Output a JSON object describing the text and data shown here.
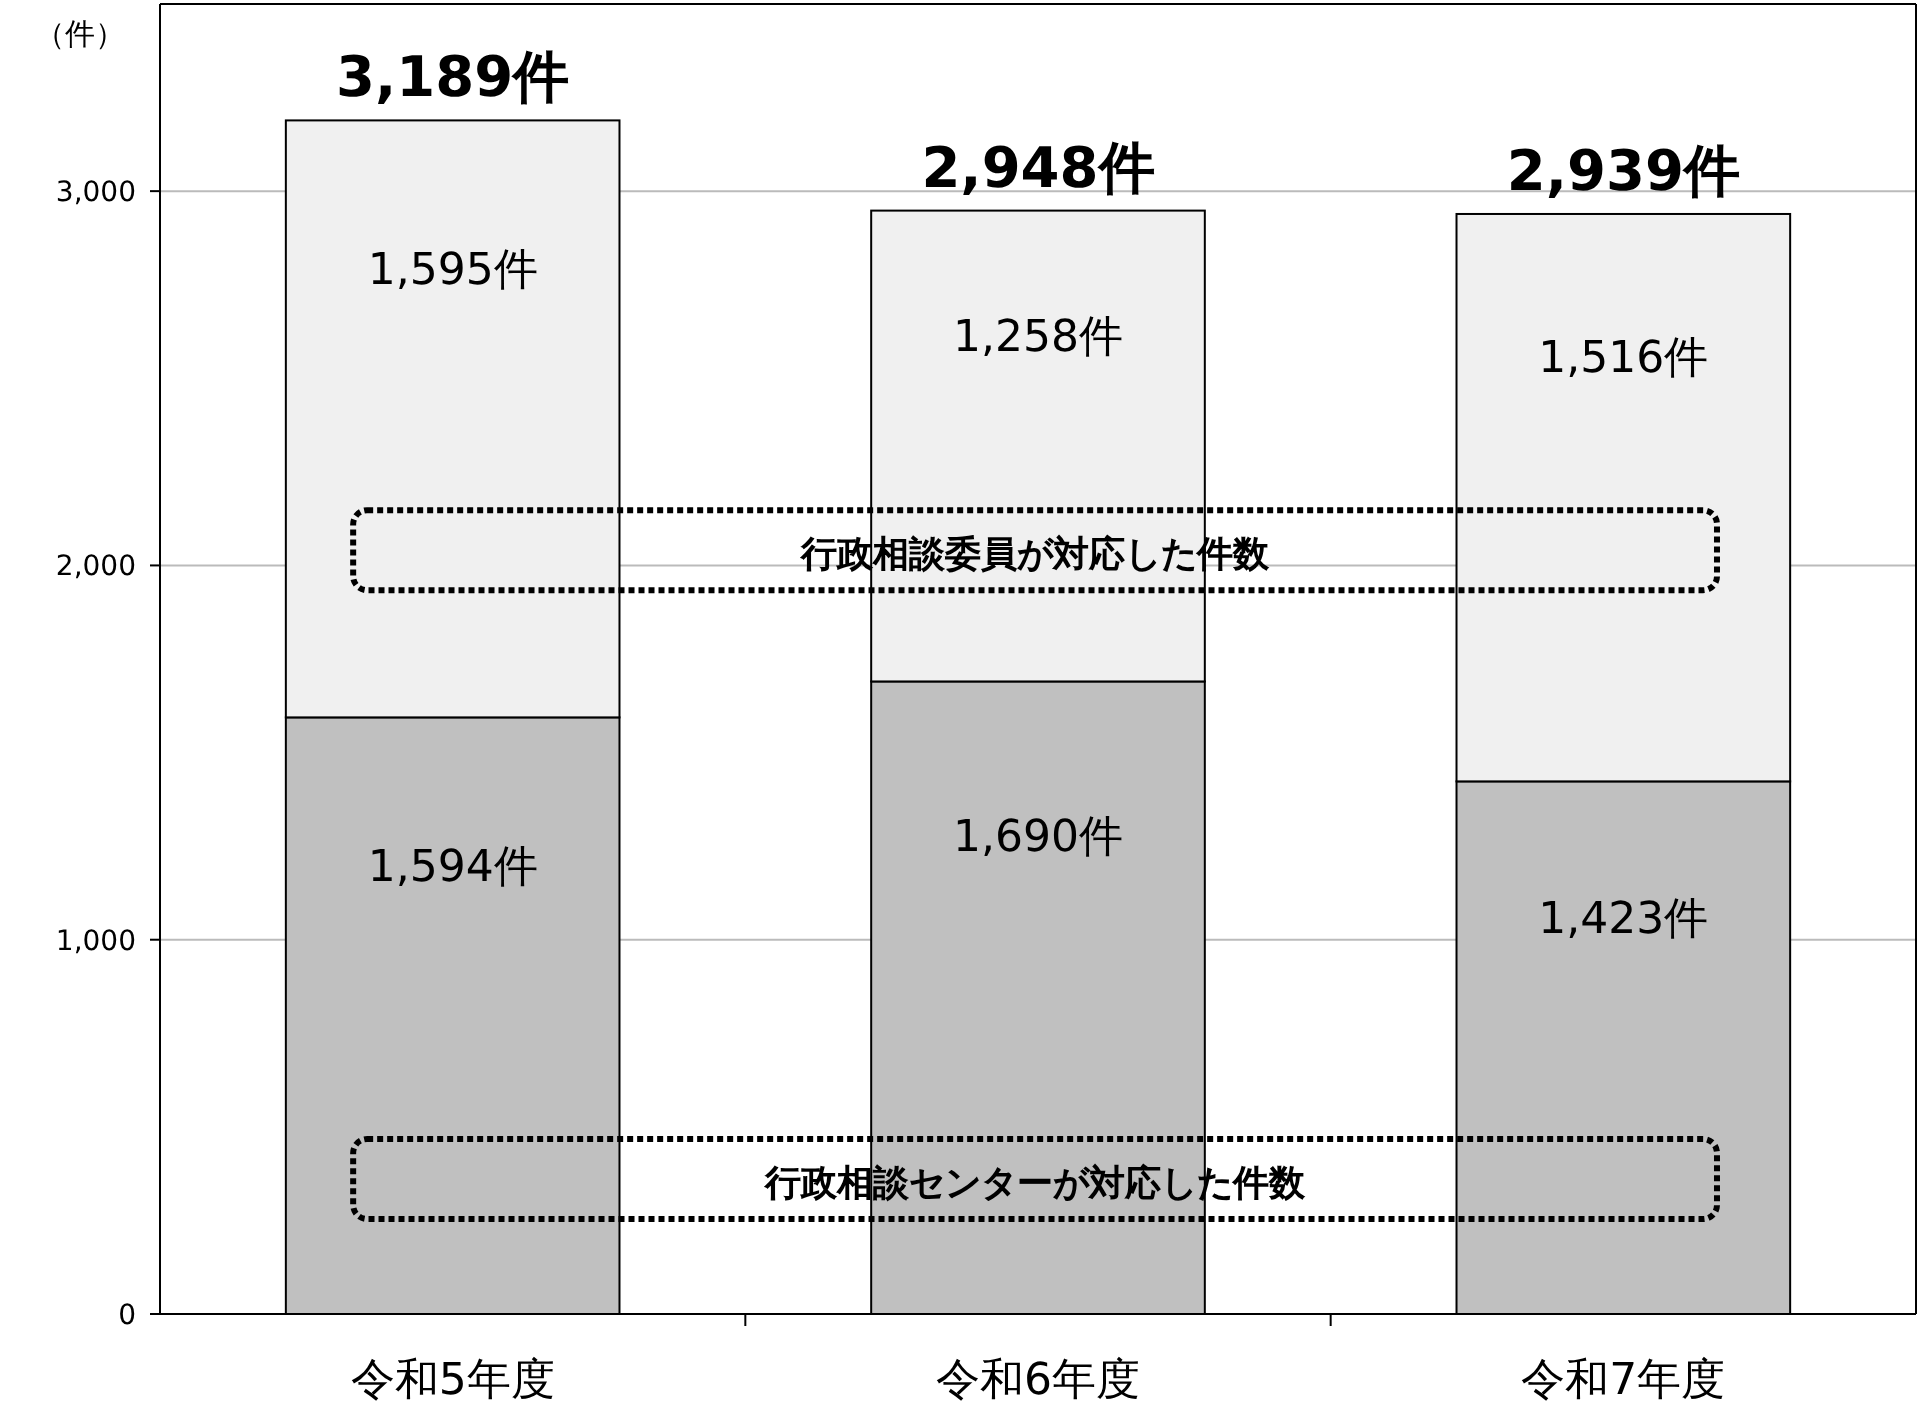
{
  "chart_data": {
    "type": "bar",
    "stacked": true,
    "ylabel": "（件）",
    "categories": [
      "令和5年度",
      "令和6年度",
      "令和7年度"
    ],
    "series": [
      {
        "name": "行政相談センターが対応した件数",
        "color": "#c0c0c0",
        "values": [
          1594,
          1690,
          1423
        ],
        "value_labels": [
          "1,594件",
          "1,690件",
          "1,423件"
        ]
      },
      {
        "name": "行政相談委員が対応した件数",
        "color": "#f0f0f0",
        "values": [
          1595,
          1258,
          1516
        ],
        "value_labels": [
          "1,595件",
          "1,258件",
          "1,516件"
        ]
      }
    ],
    "totals": [
      "3,189件",
      "2,948件",
      "2,939件"
    ],
    "ylim": [
      0,
      3500
    ],
    "yticks": [
      0,
      {
        "value": 1000,
        "label": "1,000"
      },
      {
        "value": 2000,
        "label": "2,000"
      },
      {
        "value": 3000,
        "label": "3,000"
      }
    ],
    "grid": "y"
  }
}
